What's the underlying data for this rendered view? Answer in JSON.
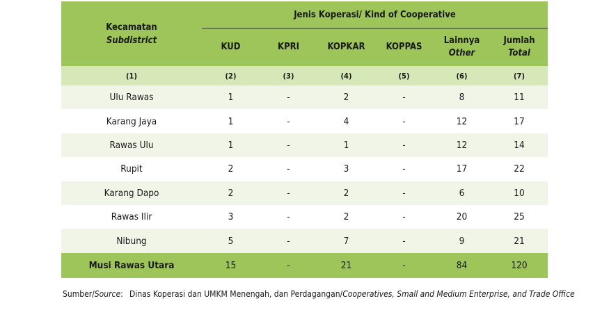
{
  "header": {
    "kecamatan": "Kecamatan",
    "subdistrict": "Subdistrict",
    "group_title": "Jenis Koperasi/ Kind of Cooperative",
    "columns": [
      {
        "line1": "KUD",
        "line2": ""
      },
      {
        "line1": "KPRI",
        "line2": ""
      },
      {
        "line1": "KOPKAR",
        "line2": ""
      },
      {
        "line1": "KOPPAS",
        "line2": ""
      },
      {
        "line1": "Lainnya",
        "line2": "Other"
      },
      {
        "line1": "Jumlah",
        "line2": "Total"
      }
    ],
    "numbers": [
      "(1)",
      "(2)",
      "(3)",
      "(4)",
      "(5)",
      "(6)",
      "(7)"
    ]
  },
  "rows": [
    {
      "name": "Ulu Rawas",
      "kud": "1",
      "kpri": "-",
      "kopkar": "2",
      "koppas": "-",
      "other": "8",
      "total": "11"
    },
    {
      "name": "Karang Jaya",
      "kud": "1",
      "kpri": "-",
      "kopkar": "4",
      "koppas": "-",
      "other": "12",
      "total": "17"
    },
    {
      "name": "Rawas Ulu",
      "kud": "1",
      "kpri": "-",
      "kopkar": "1",
      "koppas": "-",
      "other": "12",
      "total": "14"
    },
    {
      "name": "Rupit",
      "kud": "2",
      "kpri": "-",
      "kopkar": "3",
      "koppas": "-",
      "other": "17",
      "total": "22"
    },
    {
      "name": "Karang Dapo",
      "kud": "2",
      "kpri": "-",
      "kopkar": "2",
      "koppas": "-",
      "other": "6",
      "total": "10"
    },
    {
      "name": "Rawas Ilir",
      "kud": "3",
      "kpri": "-",
      "kopkar": "2",
      "koppas": "-",
      "other": "20",
      "total": "25"
    },
    {
      "name": "Nibung",
      "kud": "5",
      "kpri": "-",
      "kopkar": "7",
      "koppas": "-",
      "other": "9",
      "total": "21"
    }
  ],
  "total_row": {
    "name": "Musi Rawas Utara",
    "kud": "15",
    "kpri": "-",
    "kopkar": "21",
    "koppas": "-",
    "other": "84",
    "total": "120"
  },
  "source": {
    "label_plain": "Sumber/",
    "label_italic": "Source",
    "label_colon": ":",
    "text_plain": "Dinas Koperasi dan UMKM Menengah, dan Perdagangan/",
    "text_italic": "Cooperatives, Small and Medium Enterprise, and Trade Office"
  }
}
